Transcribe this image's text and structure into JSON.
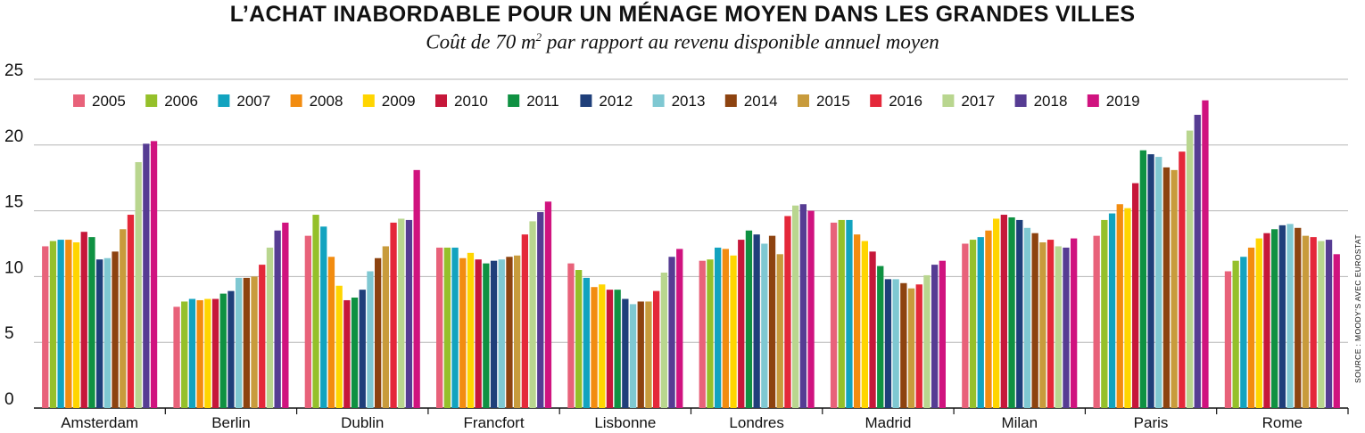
{
  "title": "L’ACHAT INABORDABLE POUR UN MÉNAGE MOYEN DANS LES GRANDES VILLES",
  "subtitle": {
    "prefix": "Coût de 70 m",
    "sup": "2",
    "suffix": " par rapport au revenu disponible annuel moyen"
  },
  "source": "SOURCE : MOODY’S AVEC EUROSTAT",
  "chart_data": {
    "type": "bar",
    "title": "L’ACHAT INABORDABLE POUR UN MÉNAGE MOYEN DANS LES GRANDES VILLES",
    "subtitle": "Coût de 70 m² par rapport au revenu disponible annuel moyen",
    "xlabel": "",
    "ylabel": "",
    "ylim": [
      0,
      25
    ],
    "yticks": [
      0,
      5,
      10,
      15,
      20,
      25
    ],
    "grid": true,
    "legend_position": "top",
    "categories": [
      "Amsterdam",
      "Berlin",
      "Dublin",
      "Francfort",
      "Lisbonne",
      "Londres",
      "Madrid",
      "Milan",
      "Paris",
      "Rome"
    ],
    "series": [
      {
        "name": "2005",
        "color": "#e8627a",
        "values": [
          12.3,
          7.7,
          13.1,
          12.2,
          11.0,
          11.2,
          14.1,
          12.5,
          13.1,
          10.4
        ]
      },
      {
        "name": "2006",
        "color": "#95c02a",
        "values": [
          12.7,
          8.1,
          14.7,
          12.2,
          10.5,
          11.3,
          14.3,
          12.8,
          14.3,
          11.2
        ]
      },
      {
        "name": "2007",
        "color": "#12a3bf",
        "values": [
          12.8,
          8.3,
          13.8,
          12.2,
          9.9,
          12.2,
          14.3,
          13.0,
          14.8,
          11.5
        ]
      },
      {
        "name": "2008",
        "color": "#f28c10",
        "values": [
          12.8,
          8.2,
          11.5,
          11.4,
          9.2,
          12.1,
          13.2,
          13.5,
          15.5,
          12.2
        ]
      },
      {
        "name": "2009",
        "color": "#ffd500",
        "values": [
          12.6,
          8.3,
          9.3,
          11.8,
          9.4,
          11.6,
          12.7,
          14.4,
          15.2,
          12.9
        ]
      },
      {
        "name": "2010",
        "color": "#c6173a",
        "values": [
          13.4,
          8.3,
          8.2,
          11.3,
          9.0,
          12.8,
          11.9,
          14.7,
          17.1,
          13.3
        ]
      },
      {
        "name": "2011",
        "color": "#0f9142",
        "values": [
          13.0,
          8.7,
          8.4,
          11.0,
          9.0,
          13.5,
          10.8,
          14.5,
          19.6,
          13.6
        ]
      },
      {
        "name": "2012",
        "color": "#1f3f7a",
        "values": [
          11.3,
          8.9,
          9.0,
          11.2,
          8.3,
          13.2,
          9.8,
          14.3,
          19.3,
          13.9
        ]
      },
      {
        "name": "2013",
        "color": "#7fc8d2",
        "values": [
          11.4,
          9.9,
          10.4,
          11.3,
          7.9,
          12.5,
          9.8,
          13.7,
          19.1,
          14.0
        ]
      },
      {
        "name": "2014",
        "color": "#8d4310",
        "values": [
          11.9,
          9.9,
          11.4,
          11.5,
          8.1,
          13.1,
          9.5,
          13.3,
          18.3,
          13.7
        ]
      },
      {
        "name": "2015",
        "color": "#c89b3c",
        "values": [
          13.6,
          10.0,
          12.3,
          11.6,
          8.1,
          11.7,
          9.1,
          12.6,
          18.1,
          13.1
        ]
      },
      {
        "name": "2016",
        "color": "#e4283a",
        "values": [
          14.7,
          10.9,
          14.1,
          13.2,
          8.9,
          14.6,
          9.4,
          12.8,
          19.5,
          13.0
        ]
      },
      {
        "name": "2017",
        "color": "#b9d68f",
        "values": [
          18.7,
          12.2,
          14.4,
          14.2,
          10.3,
          15.4,
          10.1,
          12.3,
          21.1,
          12.7
        ]
      },
      {
        "name": "2018",
        "color": "#563c93",
        "values": [
          20.1,
          13.5,
          14.3,
          14.9,
          11.5,
          15.5,
          10.9,
          12.2,
          22.3,
          12.8
        ]
      },
      {
        "name": "2019",
        "color": "#d0137f",
        "values": [
          20.3,
          14.1,
          18.1,
          15.7,
          12.1,
          15.0,
          11.2,
          12.9,
          23.4,
          11.7
        ]
      }
    ]
  }
}
